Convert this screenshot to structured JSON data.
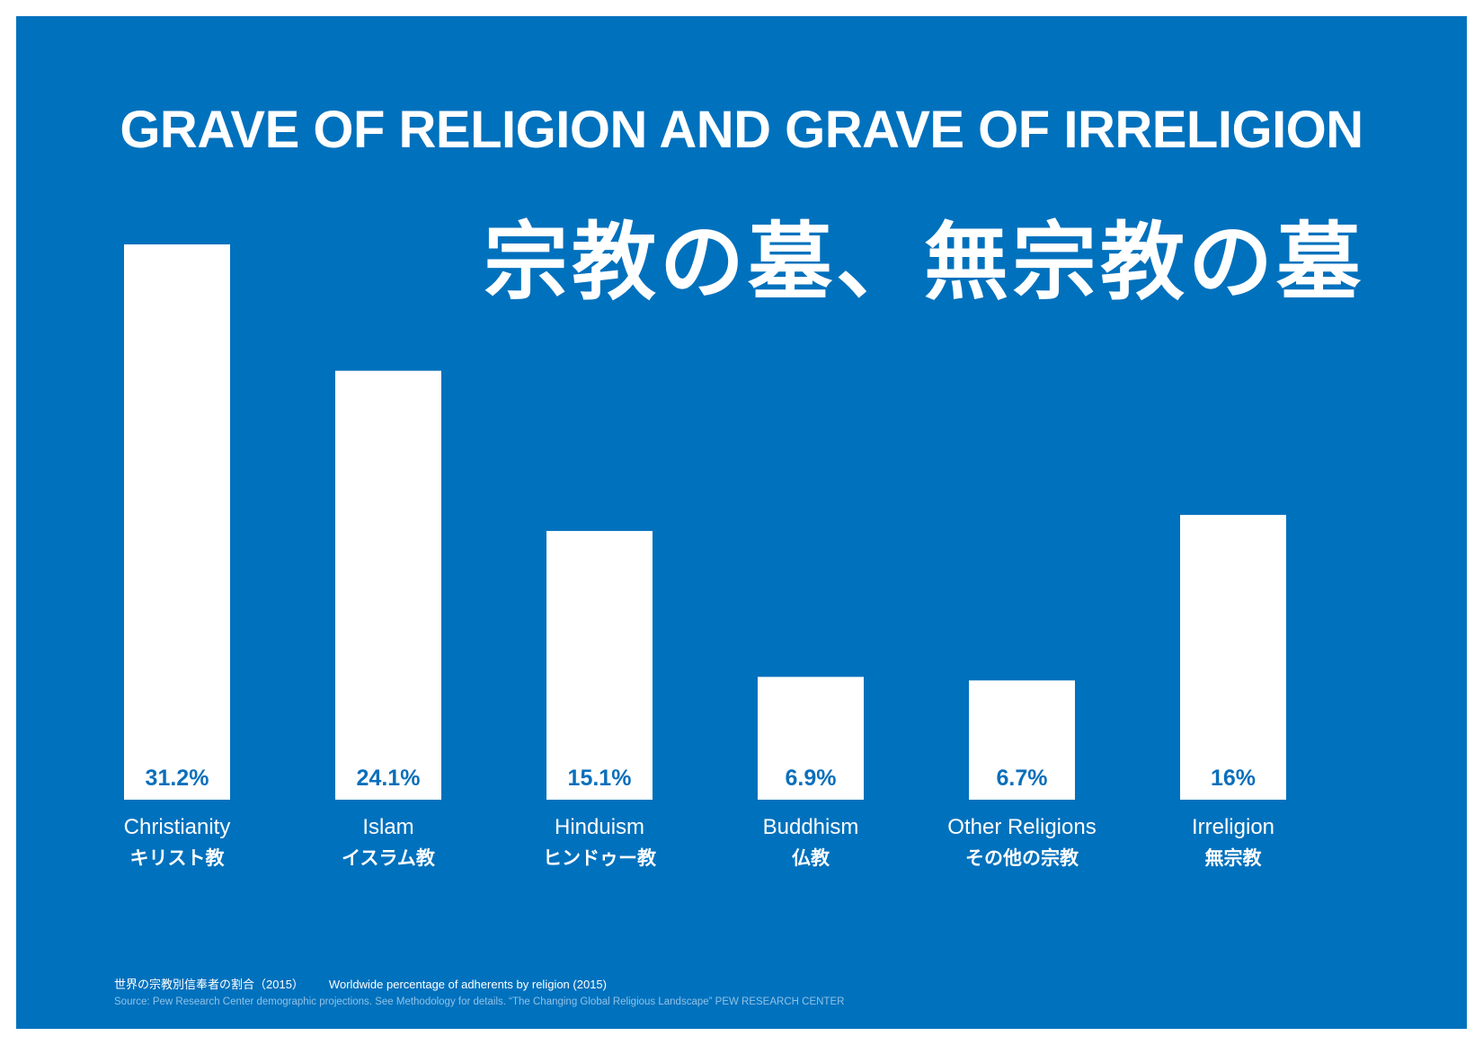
{
  "header": {
    "title_en": "GRAVE OF RELIGION AND GRAVE OF IRRELIGION",
    "title_jp": "宗教の墓、無宗教の墓"
  },
  "footer": {
    "caption_jp": "世界の宗教別信奉者の割合（2015）",
    "caption_en": "Worldwide percentage of adherents by religion (2015)",
    "source": "Source: Pew Research Center demographic projections. See Methodology for details. “The Changing Global Religious Landscape”  PEW RESEARCH CENTER"
  },
  "colors": {
    "background": "#0071bd",
    "bar": "#ffffff",
    "value_text": "#0a6fbb"
  },
  "chart_data": {
    "type": "bar",
    "title": "GRAVE OF RELIGION AND GRAVE OF IRRELIGION",
    "subtitle": "宗教の墓、無宗教の墓",
    "categories": [
      "Christianity",
      "Islam",
      "Hinduism",
      "Buddhism",
      "Other Religions",
      "Irreligion"
    ],
    "categories_jp": [
      "キリスト教",
      "イスラム教",
      "ヒンドゥー教",
      "仏教",
      "その他の宗教",
      "無宗教"
    ],
    "values": [
      31.2,
      24.1,
      15.1,
      6.9,
      6.7,
      16
    ],
    "value_labels": [
      "31.2%",
      "24.1%",
      "15.1%",
      "6.9%",
      "6.7%",
      "16%"
    ],
    "unit": "%",
    "xlabel": "",
    "ylabel": "",
    "ylim": [
      0,
      31.2
    ],
    "grid": false,
    "legend": false
  }
}
